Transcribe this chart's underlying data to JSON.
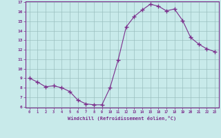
{
  "x": [
    0,
    1,
    2,
    3,
    4,
    5,
    6,
    7,
    8,
    9,
    10,
    11,
    12,
    13,
    14,
    15,
    16,
    17,
    18,
    19,
    20,
    21,
    22,
    23
  ],
  "y": [
    9.0,
    8.6,
    8.1,
    8.2,
    8.0,
    7.6,
    6.7,
    6.3,
    6.2,
    6.2,
    8.0,
    10.9,
    14.4,
    15.5,
    16.2,
    16.8,
    16.6,
    16.1,
    16.3,
    15.1,
    13.3,
    12.6,
    12.1,
    11.8
  ],
  "line_color": "#7b2d8b",
  "marker": "+",
  "marker_size": 4,
  "bg_color": "#c8eaea",
  "grid_color": "#9bbfbf",
  "xlabel": "Windchill (Refroidissement éolien,°C)",
  "xlabel_color": "#7b2d8b",
  "tick_color": "#7b2d8b",
  "ylim": [
    6,
    17
  ],
  "xlim": [
    -0.5,
    23.5
  ],
  "yticks": [
    6,
    7,
    8,
    9,
    10,
    11,
    12,
    13,
    14,
    15,
    16,
    17
  ],
  "xticks": [
    0,
    1,
    2,
    3,
    4,
    5,
    6,
    7,
    8,
    9,
    10,
    11,
    12,
    13,
    14,
    15,
    16,
    17,
    18,
    19,
    20,
    21,
    22,
    23
  ],
  "xtick_labels": [
    "0",
    "1",
    "2",
    "3",
    "4",
    "5",
    "6",
    "7",
    "8",
    "9",
    "10",
    "11",
    "12",
    "13",
    "14",
    "15",
    "16",
    "17",
    "18",
    "19",
    "20",
    "21",
    "22",
    "23"
  ]
}
